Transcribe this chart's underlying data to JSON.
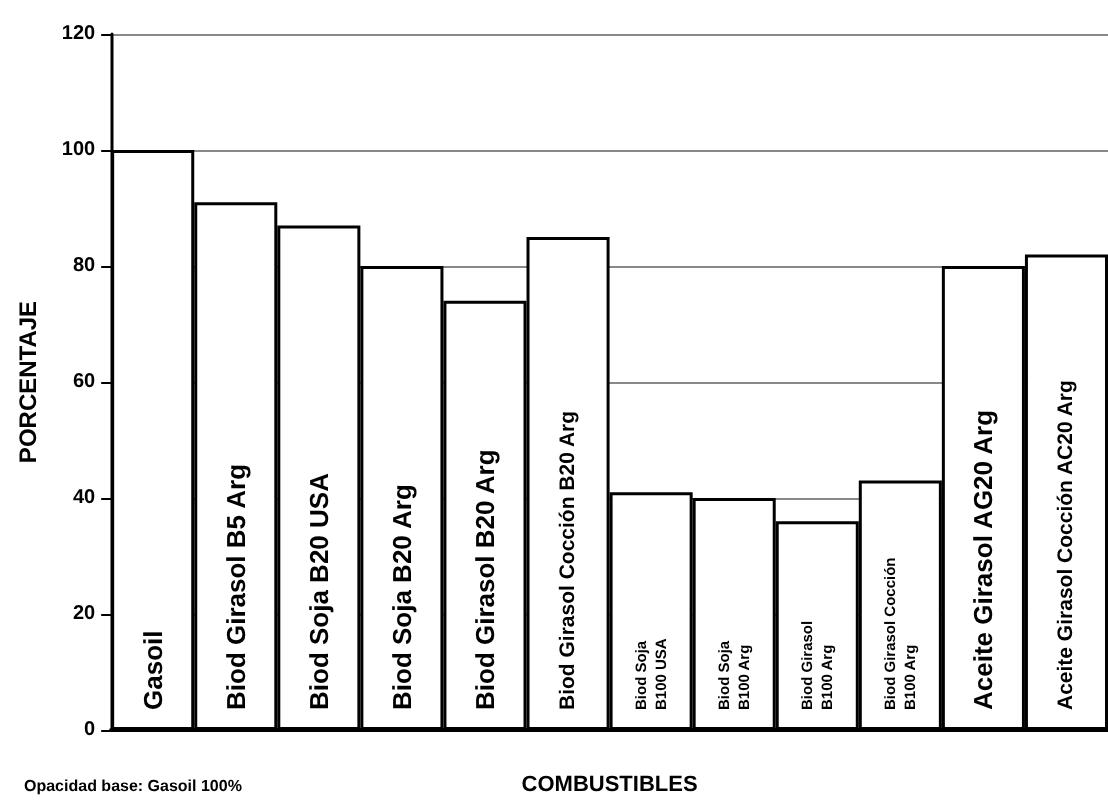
{
  "chart_data": {
    "type": "bar",
    "xlabel": "COMBUSTIBLES",
    "ylabel": "PORCENTAJE",
    "categories": [
      "Gasoil",
      "Biod Girasol B5 Arg",
      "Biod Soja B20 USA",
      "Biod Soja B20 Arg",
      "Biod Girasol B20 Arg",
      "Biod Girasol Cocción B20 Arg",
      "Biod Soja\nB100 USA",
      "Biod Soja\nB100 Arg",
      "Biod Girasol\nB100 Arg",
      "Biod Girasol Cocción\nB100 Arg",
      "Aceite Girasol AG20 Arg",
      "Aceite Girasol Cocción AC20 Arg"
    ],
    "values": [
      100,
      91,
      87,
      80,
      74,
      85,
      41,
      40,
      36,
      43,
      80,
      82
    ],
    "color": "#ffffff",
    "ylim": [
      0,
      120
    ],
    "yticks": [
      0,
      20,
      40,
      60,
      80,
      100,
      120
    ],
    "grid": "y",
    "annotations": [
      "Opacidad base: Gasoil 100%"
    ]
  }
}
